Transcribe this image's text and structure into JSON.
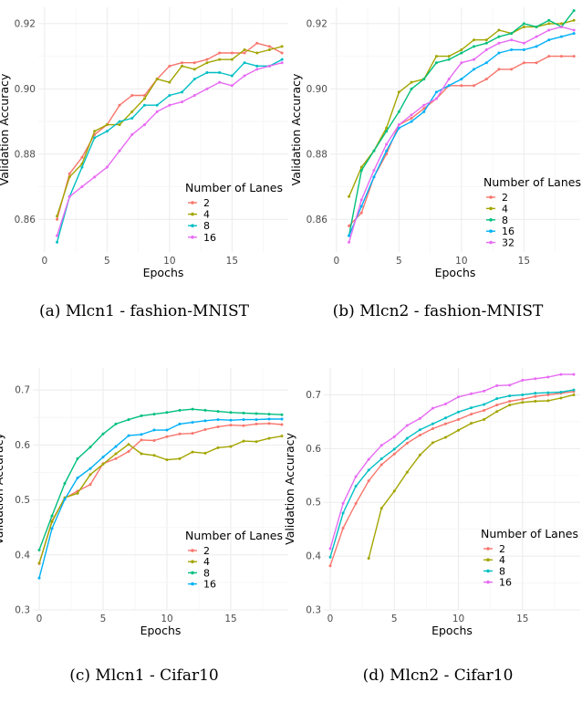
{
  "chart_data": [
    {
      "type": "line",
      "caption": "(a) Mlcn1 - fashion-MNIST",
      "xlabel": "Epochs",
      "ylabel": "Validation Accuracy",
      "xlim": [
        -0.5,
        19.5
      ],
      "ylim": [
        0.85,
        0.925
      ],
      "xticks": [
        0,
        5,
        10,
        15
      ],
      "yticks": [
        0.86,
        0.88,
        0.9,
        0.92
      ],
      "ytick_labels": [
        "0.86",
        "0.88",
        "0.90",
        "0.92"
      ],
      "legend_title": "Number of Lanes",
      "legend_position": "bottom-right",
      "x": [
        1,
        2,
        3,
        4,
        5,
        6,
        7,
        8,
        9,
        10,
        11,
        12,
        13,
        14,
        15,
        16,
        17,
        18,
        19
      ],
      "series": [
        {
          "name": "2",
          "color": "#F8766D",
          "values": [
            0.86,
            0.874,
            0.879,
            0.886,
            0.889,
            0.895,
            0.898,
            0.898,
            0.903,
            0.907,
            0.908,
            0.908,
            0.909,
            0.911,
            0.911,
            0.911,
            0.914,
            0.913,
            0.911
          ]
        },
        {
          "name": "4",
          "color": "#A3A500",
          "values": [
            0.861,
            0.873,
            0.877,
            0.887,
            0.889,
            0.889,
            0.893,
            0.897,
            0.903,
            0.902,
            0.907,
            0.906,
            0.908,
            0.909,
            0.909,
            0.912,
            0.911,
            0.912,
            0.913
          ]
        },
        {
          "name": "8",
          "color": "#00BFC4",
          "values": [
            0.853,
            0.867,
            0.876,
            0.885,
            0.887,
            0.89,
            0.891,
            0.895,
            0.895,
            0.898,
            0.899,
            0.903,
            0.905,
            0.905,
            0.904,
            0.908,
            0.907,
            0.907,
            0.909
          ]
        },
        {
          "name": "16",
          "color": "#E76BF3",
          "values": [
            0.855,
            0.867,
            0.87,
            0.873,
            0.876,
            0.881,
            0.886,
            0.889,
            0.893,
            0.895,
            0.896,
            0.898,
            0.9,
            0.902,
            0.901,
            0.904,
            0.906,
            0.907,
            0.908
          ]
        }
      ]
    },
    {
      "type": "line",
      "caption": "(b) Mlcn2 - fashion-MNIST",
      "xlabel": "Epochs",
      "ylabel": "Validation Accuracy",
      "xlim": [
        -0.5,
        19.5
      ],
      "ylim": [
        0.85,
        0.925
      ],
      "xticks": [
        0,
        5,
        10,
        15
      ],
      "yticks": [
        0.86,
        0.88,
        0.9,
        0.92
      ],
      "ytick_labels": [
        "0.86",
        "0.88",
        "0.90",
        "0.92"
      ],
      "legend_title": "Number of Lanes",
      "legend_position": "bottom-right",
      "x": [
        1,
        2,
        3,
        4,
        5,
        6,
        7,
        8,
        9,
        10,
        11,
        12,
        13,
        14,
        15,
        16,
        17,
        18,
        19
      ],
      "series": [
        {
          "name": "2",
          "color": "#F8766D",
          "values": [
            0.858,
            0.862,
            0.873,
            0.88,
            0.889,
            0.891,
            0.894,
            0.897,
            0.901,
            0.901,
            0.901,
            0.903,
            0.906,
            0.906,
            0.908,
            0.908,
            0.91,
            0.91,
            0.91
          ]
        },
        {
          "name": "4",
          "color": "#A3A500",
          "values": [
            0.867,
            0.876,
            0.881,
            0.888,
            0.899,
            0.902,
            0.903,
            0.91,
            0.91,
            0.912,
            0.915,
            0.915,
            0.918,
            0.917,
            0.919,
            0.919,
            0.92,
            0.92,
            0.921
          ]
        },
        {
          "name": "8",
          "color": "#00BF7D",
          "values": [
            0.855,
            0.875,
            0.881,
            0.887,
            0.893,
            0.9,
            0.903,
            0.908,
            0.909,
            0.911,
            0.913,
            0.914,
            0.916,
            0.917,
            0.92,
            0.919,
            0.921,
            0.919,
            0.924
          ]
        },
        {
          "name": "16",
          "color": "#00B0F6",
          "values": [
            0.855,
            0.864,
            0.873,
            0.881,
            0.888,
            0.89,
            0.893,
            0.899,
            0.901,
            0.903,
            0.906,
            0.908,
            0.911,
            0.912,
            0.912,
            0.913,
            0.915,
            0.916,
            0.917
          ]
        },
        {
          "name": "32",
          "color": "#E76BF3",
          "values": [
            0.853,
            0.866,
            0.875,
            0.883,
            0.889,
            0.892,
            0.895,
            0.897,
            0.903,
            0.908,
            0.909,
            0.912,
            0.914,
            0.915,
            0.914,
            0.916,
            0.918,
            0.919,
            0.918
          ]
        }
      ]
    },
    {
      "type": "line",
      "caption": "(c) Mlcn1 - Cifar10",
      "xlabel": "Epochs",
      "ylabel": "Validation Accuracy",
      "xlim": [
        -0.5,
        19.5
      ],
      "ylim": [
        0.3,
        0.74
      ],
      "xticks": [
        0,
        5,
        10,
        15
      ],
      "yticks": [
        0.3,
        0.4,
        0.5,
        0.6,
        0.7
      ],
      "ytick_labels": [
        "0.3",
        "0.4",
        "0.5",
        "0.6",
        "0.7"
      ],
      "legend_title": "Number of Lanes",
      "legend_position": "bottom-right",
      "x": [
        0,
        1,
        2,
        3,
        4,
        5,
        6,
        7,
        8,
        9,
        10,
        11,
        12,
        13,
        14,
        15,
        16,
        17,
        18,
        19
      ],
      "series": [
        {
          "name": "2",
          "color": "#F8766D",
          "values": [
            0.384,
            0.462,
            0.503,
            0.516,
            0.528,
            0.566,
            0.575,
            0.588,
            0.609,
            0.608,
            0.615,
            0.62,
            0.621,
            0.628,
            0.633,
            0.636,
            0.635,
            0.638,
            0.639,
            0.637
          ]
        },
        {
          "name": "4",
          "color": "#A3A500",
          "values": [
            0.385,
            0.46,
            0.504,
            0.512,
            0.546,
            0.565,
            0.584,
            0.601,
            0.584,
            0.581,
            0.573,
            0.575,
            0.587,
            0.585,
            0.595,
            0.597,
            0.607,
            0.606,
            0.612,
            0.616
          ]
        },
        {
          "name": "8",
          "color": "#00BF7D",
          "values": [
            0.409,
            0.471,
            0.53,
            0.575,
            0.596,
            0.62,
            0.638,
            0.646,
            0.653,
            0.656,
            0.659,
            0.663,
            0.665,
            0.663,
            0.661,
            0.659,
            0.658,
            0.657,
            0.656,
            0.655
          ]
        },
        {
          "name": "16",
          "color": "#00B0F6",
          "values": [
            0.358,
            0.448,
            0.501,
            0.54,
            0.557,
            0.578,
            0.597,
            0.617,
            0.619,
            0.627,
            0.627,
            0.638,
            0.641,
            0.644,
            0.646,
            0.645,
            0.646,
            0.646,
            0.647,
            0.647
          ]
        }
      ]
    },
    {
      "type": "line",
      "caption": "(d) Mlcn2 - Cifar10",
      "xlabel": "Epochs",
      "ylabel": "Validation Accuracy",
      "xlim": [
        -0.5,
        19.5
      ],
      "ylim": [
        0.3,
        0.75
      ],
      "xticks": [
        0,
        5,
        10,
        15
      ],
      "yticks": [
        0.3,
        0.4,
        0.5,
        0.6,
        0.7
      ],
      "ytick_labels": [
        "0.3",
        "0.4",
        "0.5",
        "0.6",
        "0.7"
      ],
      "legend_title": "Number of Lanes",
      "legend_position": "bottom-right",
      "x": [
        0,
        1,
        2,
        3,
        4,
        5,
        6,
        7,
        8,
        9,
        10,
        11,
        12,
        13,
        14,
        15,
        16,
        17,
        18,
        19
      ],
      "series": [
        {
          "name": "2",
          "color": "#F8766D",
          "values": [
            0.382,
            0.452,
            0.498,
            0.54,
            0.57,
            0.59,
            0.61,
            0.625,
            0.637,
            0.646,
            0.654,
            0.664,
            0.671,
            0.681,
            0.688,
            0.692,
            0.697,
            0.7,
            0.703,
            0.706
          ]
        },
        {
          "name": "4",
          "color": "#A3A500",
          "x": [
            3,
            4,
            5,
            6,
            7,
            8,
            9,
            10,
            11,
            12,
            13,
            14,
            15,
            16,
            17,
            18,
            19
          ],
          "values": [
            0.396,
            0.489,
            0.521,
            0.556,
            0.588,
            0.611,
            0.621,
            0.634,
            0.647,
            0.654,
            0.669,
            0.681,
            0.686,
            0.688,
            0.689,
            0.694,
            0.7
          ]
        },
        {
          "name": "8",
          "color": "#00BFC4",
          "values": [
            0.398,
            0.48,
            0.53,
            0.56,
            0.581,
            0.599,
            0.619,
            0.635,
            0.646,
            0.657,
            0.668,
            0.676,
            0.682,
            0.693,
            0.698,
            0.7,
            0.703,
            0.704,
            0.705,
            0.709
          ]
        },
        {
          "name": "16",
          "color": "#E76BF3",
          "values": [
            0.414,
            0.498,
            0.548,
            0.58,
            0.606,
            0.622,
            0.643,
            0.656,
            0.675,
            0.683,
            0.696,
            0.702,
            0.707,
            0.717,
            0.718,
            0.727,
            0.73,
            0.733,
            0.738,
            0.738
          ]
        }
      ]
    }
  ]
}
